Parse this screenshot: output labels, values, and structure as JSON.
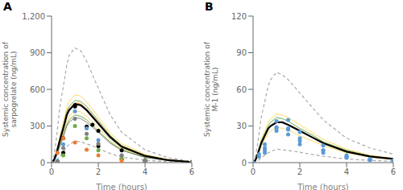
{
  "chart_data": [
    {
      "type": "line",
      "title": "A",
      "x_label": "Time (hours)",
      "y_label": "Systemic concentration of\nsarpogrelate (ng/mL)",
      "xlim": [
        0,
        6
      ],
      "xticks": [
        0,
        2,
        4,
        6
      ],
      "ylim": [
        0,
        1200
      ],
      "yticks": [
        0,
        300,
        600,
        900,
        {
          "value": 1200,
          "label": "1,200"
        }
      ],
      "grid": false,
      "series": [
        {
          "type": "line",
          "color": "#aaaaaa",
          "line_style": "dashed",
          "x": [
            0,
            0.05,
            0.1,
            0.2,
            0.35,
            0.5,
            0.65,
            0.75,
            1.0,
            1.25,
            1.5,
            2.0,
            2.5,
            3.0,
            4.0,
            5.0,
            6.0
          ],
          "values": [
            0,
            20,
            55,
            185,
            450,
            620,
            800,
            880,
            940,
            915,
            830,
            610,
            395,
            248,
            104,
            40,
            10
          ]
        },
        {
          "type": "line",
          "color": "#aaaaaa",
          "line_style": "dashed",
          "x": [
            0,
            0.05,
            0.1,
            0.2,
            0.35,
            0.5,
            0.65,
            0.75,
            1.0,
            1.25,
            1.5,
            2.0,
            2.5,
            3.0,
            4.0,
            5.0,
            6.0
          ],
          "values": [
            0,
            2,
            6,
            20,
            50,
            88,
            130,
            150,
            175,
            170,
            155,
            115,
            75,
            46,
            19,
            7,
            2
          ]
        },
        {
          "type": "line",
          "color": "#ffd966",
          "line_style": "solid",
          "x": [
            0,
            0.05,
            0.1,
            0.2,
            0.35,
            0.5,
            0.65,
            0.75,
            1.0,
            1.25,
            1.5,
            2.0,
            2.5,
            3.0,
            4.0,
            5.0,
            6.0
          ],
          "values": [
            0,
            10,
            25,
            85,
            215,
            325,
            455,
            500,
            555,
            545,
            500,
            375,
            245,
            155,
            67,
            26,
            6
          ]
        },
        {
          "type": "line",
          "color": "#ffd966",
          "line_style": "solid",
          "x": [
            0,
            0.05,
            0.1,
            0.2,
            0.35,
            0.5,
            0.65,
            0.75,
            1.0,
            1.25,
            1.5,
            2.0,
            2.5,
            3.0,
            4.0,
            5.0,
            6.0
          ],
          "values": [
            0,
            7,
            18,
            60,
            155,
            245,
            340,
            380,
            425,
            415,
            380,
            285,
            185,
            115,
            48,
            18,
            4
          ]
        },
        {
          "type": "line",
          "color": "#70ad47",
          "line_style": "solid",
          "x": [
            0,
            0.05,
            0.1,
            0.2,
            0.35,
            0.5,
            0.65,
            0.75,
            1.0,
            1.25,
            1.5,
            2.0,
            2.5,
            3.0,
            4.0,
            5.0,
            6.0
          ],
          "values": [
            0,
            9,
            22,
            78,
            195,
            300,
            420,
            460,
            510,
            500,
            460,
            345,
            225,
            140,
            59,
            22,
            5
          ]
        },
        {
          "type": "line",
          "color": "#70ad47",
          "line_style": "solid",
          "x": [
            0,
            0.05,
            0.1,
            0.2,
            0.35,
            0.5,
            0.65,
            0.75,
            1.0,
            1.25,
            1.5,
            2.0,
            2.5,
            3.0,
            4.0,
            5.0,
            6.0
          ],
          "values": [
            0,
            6,
            16,
            55,
            140,
            225,
            310,
            350,
            390,
            380,
            350,
            260,
            170,
            105,
            44,
            16,
            4
          ]
        },
        {
          "type": "line",
          "color": "#ed7d31",
          "line_style": "solid",
          "x": [
            0,
            0.05,
            0.1,
            0.2,
            0.35,
            0.5,
            0.65,
            0.75,
            1.0,
            1.25,
            1.5,
            2.0,
            2.5,
            3.0,
            4.0,
            5.0,
            6.0
          ],
          "values": [
            0,
            8,
            20,
            72,
            185,
            285,
            400,
            440,
            490,
            480,
            440,
            330,
            215,
            134,
            56,
            21,
            5
          ]
        },
        {
          "type": "line",
          "color": "#808080",
          "line_style": "solid",
          "x": [
            0,
            0.05,
            0.1,
            0.2,
            0.35,
            0.5,
            0.65,
            0.75,
            1.0,
            1.25,
            1.5,
            2.0,
            2.5,
            3.0,
            4.0,
            5.0,
            6.0
          ],
          "values": [
            0,
            5,
            14,
            50,
            130,
            210,
            300,
            330,
            370,
            360,
            330,
            248,
            160,
            100,
            42,
            16,
            4
          ]
        },
        {
          "type": "line",
          "color": "#000000",
          "line_style": "solid",
          "x": [
            0,
            0.05,
            0.1,
            0.2,
            0.35,
            0.5,
            0.65,
            0.75,
            1.0,
            1.25,
            1.5,
            2.0,
            2.5,
            3.0,
            4.0,
            5.0,
            6.0
          ],
          "values": [
            0,
            8,
            20,
            70,
            180,
            280,
            390,
            430,
            480,
            470,
            430,
            320,
            210,
            130,
            55,
            20,
            5
          ]
        },
        {
          "type": "scatter",
          "color": "#000000",
          "marker": "circle",
          "x": [
            0,
            0.25,
            0.5,
            1.0,
            1.5,
            2.0,
            3.0,
            4.0,
            6.0
          ],
          "values": [
            0,
            5,
            80,
            460,
            295,
            135,
            30,
            8,
            2
          ]
        },
        {
          "type": "scatter",
          "color": "#000000",
          "marker": "circle",
          "x": [
            0,
            0.25,
            0.5,
            1.0,
            1.75,
            2.0,
            3.0,
            4.0,
            6.0
          ],
          "values": [
            0,
            10,
            200,
            470,
            310,
            260,
            100,
            20,
            5
          ]
        },
        {
          "type": "scatter",
          "color": "#5b9bd5",
          "marker": "circle",
          "x": [
            0,
            0.25,
            0.5,
            1.0,
            1.5,
            2.0,
            3.0,
            4.0,
            6.0
          ],
          "values": [
            0,
            15,
            150,
            420,
            280,
            185,
            60,
            10,
            3
          ]
        },
        {
          "type": "scatter",
          "color": "#70ad47",
          "marker": "circle",
          "x": [
            0,
            0.25,
            0.5,
            1.0,
            1.5,
            2.0,
            3.0,
            4.0,
            6.0
          ],
          "values": [
            0,
            5,
            60,
            300,
            200,
            100,
            35,
            20,
            5
          ]
        },
        {
          "type": "scatter",
          "color": "#ed7d31",
          "marker": "circle",
          "x": [
            0,
            0.25,
            0.5,
            1.0,
            1.5,
            2.0,
            3.0,
            4.0,
            6.0
          ],
          "values": [
            0,
            80,
            200,
            165,
            105,
            60,
            15,
            5,
            2
          ]
        },
        {
          "type": "scatter",
          "color": "#808080",
          "marker": "circle",
          "x": [
            0,
            0.25,
            0.5,
            1.0,
            1.5,
            2.0,
            3.0,
            4.0,
            6.0
          ],
          "values": [
            0,
            5,
            120,
            360,
            235,
            155,
            60,
            15,
            4
          ]
        }
      ]
    },
    {
      "type": "line",
      "title": "B",
      "x_label": "Time (hours)",
      "y_label": "Systemic concentration of\nM-1 (ng/mL)",
      "xlim": [
        0,
        6
      ],
      "xticks": [
        0,
        2,
        4,
        6
      ],
      "ylim": [
        0,
        120
      ],
      "yticks": [
        0,
        30,
        60,
        90,
        120
      ],
      "grid": false,
      "series": [
        {
          "type": "line",
          "color": "#aaaaaa",
          "line_style": "dashed",
          "x": [
            0,
            0.05,
            0.1,
            0.2,
            0.35,
            0.5,
            0.65,
            0.75,
            1.0,
            1.25,
            1.5,
            2.0,
            2.5,
            3.0,
            4.0,
            5.0,
            6.0
          ],
          "values": [
            0,
            2,
            5,
            16,
            37,
            50,
            63,
            68,
            74,
            72,
            68,
            57,
            46,
            35,
            20,
            12,
            7
          ]
        },
        {
          "type": "line",
          "color": "#aaaaaa",
          "line_style": "dashed",
          "x": [
            0,
            0.05,
            0.1,
            0.2,
            0.35,
            0.5,
            0.65,
            0.75,
            1.0,
            1.25,
            1.5,
            2.0,
            2.5,
            3.0,
            4.0,
            5.0,
            6.0
          ],
          "values": [
            0,
            0.2,
            0.5,
            1.5,
            4,
            6,
            8,
            9,
            11,
            10.5,
            10,
            8.5,
            6.8,
            5.2,
            3,
            1.8,
            1.1
          ]
        },
        {
          "type": "line",
          "color": "#ffd966",
          "line_style": "solid",
          "x": [
            0,
            0.05,
            0.1,
            0.2,
            0.35,
            0.5,
            0.65,
            0.75,
            1.0,
            1.25,
            1.5,
            2.0,
            2.5,
            3.0,
            4.0,
            5.0,
            6.0
          ],
          "values": [
            0,
            1,
            2.5,
            8.5,
            19,
            26,
            33,
            36,
            40,
            39,
            37,
            31,
            25,
            19,
            11,
            6,
            3.5
          ]
        },
        {
          "type": "line",
          "color": "#ffd966",
          "line_style": "solid",
          "x": [
            0,
            0.05,
            0.1,
            0.2,
            0.35,
            0.5,
            0.65,
            0.75,
            1.0,
            1.25,
            1.5,
            2.0,
            2.5,
            3.0,
            4.0,
            5.0,
            6.0
          ],
          "values": [
            0,
            0.7,
            1.8,
            6,
            13.5,
            19,
            24,
            26,
            29,
            28,
            27,
            22,
            18,
            14,
            8,
            4.5,
            2.5
          ]
        },
        {
          "type": "line",
          "color": "#70ad47",
          "line_style": "solid",
          "x": [
            0,
            0.05,
            0.1,
            0.2,
            0.35,
            0.5,
            0.65,
            0.75,
            1.0,
            1.25,
            1.5,
            2.0,
            2.5,
            3.0,
            4.0,
            5.0,
            6.0
          ],
          "values": [
            0,
            0.9,
            2.2,
            7.5,
            17.5,
            24,
            30,
            33,
            37,
            36,
            34,
            28,
            23,
            17,
            10,
            5.5,
            3.2
          ]
        },
        {
          "type": "line",
          "color": "#ed7d31",
          "line_style": "solid",
          "x": [
            0,
            0.05,
            0.1,
            0.2,
            0.35,
            0.5,
            0.65,
            0.75,
            1.0,
            1.25,
            1.5,
            2.0,
            2.5,
            3.0,
            4.0,
            5.0,
            6.0
          ],
          "values": [
            0,
            0.8,
            2,
            7,
            16,
            22,
            28,
            30,
            33,
            33,
            31,
            26,
            21,
            16,
            9,
            5,
            3
          ]
        },
        {
          "type": "line",
          "color": "#000000",
          "line_style": "solid",
          "x": [
            0,
            0.05,
            0.1,
            0.2,
            0.35,
            0.5,
            0.65,
            0.75,
            1.0,
            1.25,
            1.5,
            2.0,
            2.5,
            3.0,
            4.0,
            5.0,
            6.0
          ],
          "values": [
            0,
            0.8,
            2,
            7,
            16,
            22,
            28,
            30,
            33,
            33,
            31,
            26,
            21,
            16,
            9,
            5,
            3
          ]
        },
        {
          "type": "scatter",
          "color": "#5b9bd5",
          "marker": "circle",
          "x": [
            0,
            0.25,
            0.5,
            1.0,
            1.5,
            2.0,
            3.0,
            4.0,
            5.0,
            6.0
          ],
          "values": [
            0,
            7,
            10,
            29,
            35,
            25,
            14,
            6,
            3,
            2
          ]
        },
        {
          "type": "scatter",
          "color": "#5b9bd5",
          "marker": "circle",
          "x": [
            0,
            0.25,
            0.5,
            1.0,
            1.5,
            2.0,
            3.0,
            4.0,
            5.0,
            6.0
          ],
          "values": [
            0,
            5,
            15,
            28,
            27,
            18,
            10,
            5,
            2.5,
            1.5
          ]
        },
        {
          "type": "scatter",
          "color": "#5b9bd5",
          "marker": "circle",
          "x": [
            0,
            0.5,
            1.0,
            1.5,
            2.0,
            3.0,
            4.0,
            5.0,
            6.0
          ],
          "values": [
            0,
            8,
            26,
            23,
            15,
            8,
            4,
            2,
            1
          ]
        },
        {
          "type": "scatter",
          "color": "#5b9bd5",
          "marker": "circle",
          "x": [
            0,
            0.5,
            1.0,
            1.5,
            2.0,
            3.0,
            4.0,
            5.0,
            6.0
          ],
          "values": [
            0,
            12,
            34,
            28,
            20,
            10,
            5,
            2.5,
            1.5
          ]
        }
      ]
    }
  ]
}
